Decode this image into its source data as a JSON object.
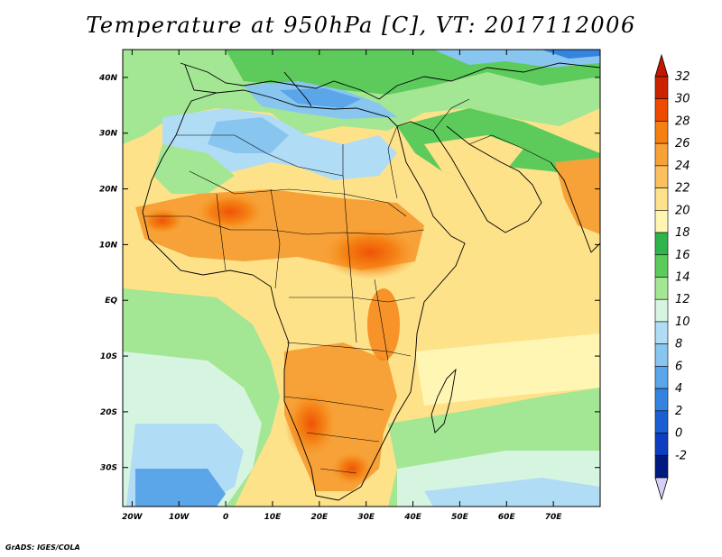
{
  "title": "Temperature at 950hPa [C], VT: 2017112006",
  "footer": "GrADS: IGES/COLA",
  "map": {
    "lon_range": [
      -22,
      80
    ],
    "lat_range": [
      -37,
      45
    ],
    "lat_ticks": [
      {
        "value": 40,
        "label": "40N"
      },
      {
        "value": 30,
        "label": "30N"
      },
      {
        "value": 20,
        "label": "20N"
      },
      {
        "value": 10,
        "label": "10N"
      },
      {
        "value": 0,
        "label": "EQ"
      },
      {
        "value": -10,
        "label": "10S"
      },
      {
        "value": -20,
        "label": "20S"
      },
      {
        "value": -30,
        "label": "30S"
      }
    ],
    "lon_ticks": [
      {
        "value": -20,
        "label": "20W"
      },
      {
        "value": -10,
        "label": "10W"
      },
      {
        "value": 0,
        "label": "0"
      },
      {
        "value": 10,
        "label": "10E"
      },
      {
        "value": 20,
        "label": "20E"
      },
      {
        "value": 30,
        "label": "30E"
      },
      {
        "value": 40,
        "label": "40E"
      },
      {
        "value": 50,
        "label": "50E"
      },
      {
        "value": 60,
        "label": "60E"
      },
      {
        "value": 70,
        "label": "70E"
      }
    ]
  },
  "colorbar": {
    "levels": [
      {
        "label": "32",
        "color": "#cc2200"
      },
      {
        "label": "30",
        "color": "#ee4a00"
      },
      {
        "label": "28",
        "color": "#f57f10"
      },
      {
        "label": "26",
        "color": "#f7a238"
      },
      {
        "label": "24",
        "color": "#fac060"
      },
      {
        "label": "22",
        "color": "#fde28a"
      },
      {
        "label": "20",
        "color": "#fff6b4"
      },
      {
        "label": "18",
        "color": "#2eb44a"
      },
      {
        "label": "16",
        "color": "#5dcb5c"
      },
      {
        "label": "14",
        "color": "#a3e693"
      },
      {
        "label": "12",
        "color": "#d6f5e0"
      },
      {
        "label": "10",
        "color": "#b0dcf5"
      },
      {
        "label": "8",
        "color": "#88c6ef"
      },
      {
        "label": "6",
        "color": "#5aa6e8"
      },
      {
        "label": "4",
        "color": "#3484df"
      },
      {
        "label": "2",
        "color": "#1c5fd3"
      },
      {
        "label": "0",
        "color": "#0c3ebf"
      },
      {
        "label": "-2",
        "color": "#001a80"
      }
    ],
    "max_arrow_color": "#c41800",
    "min_arrow_color": "#d6d0f5"
  }
}
